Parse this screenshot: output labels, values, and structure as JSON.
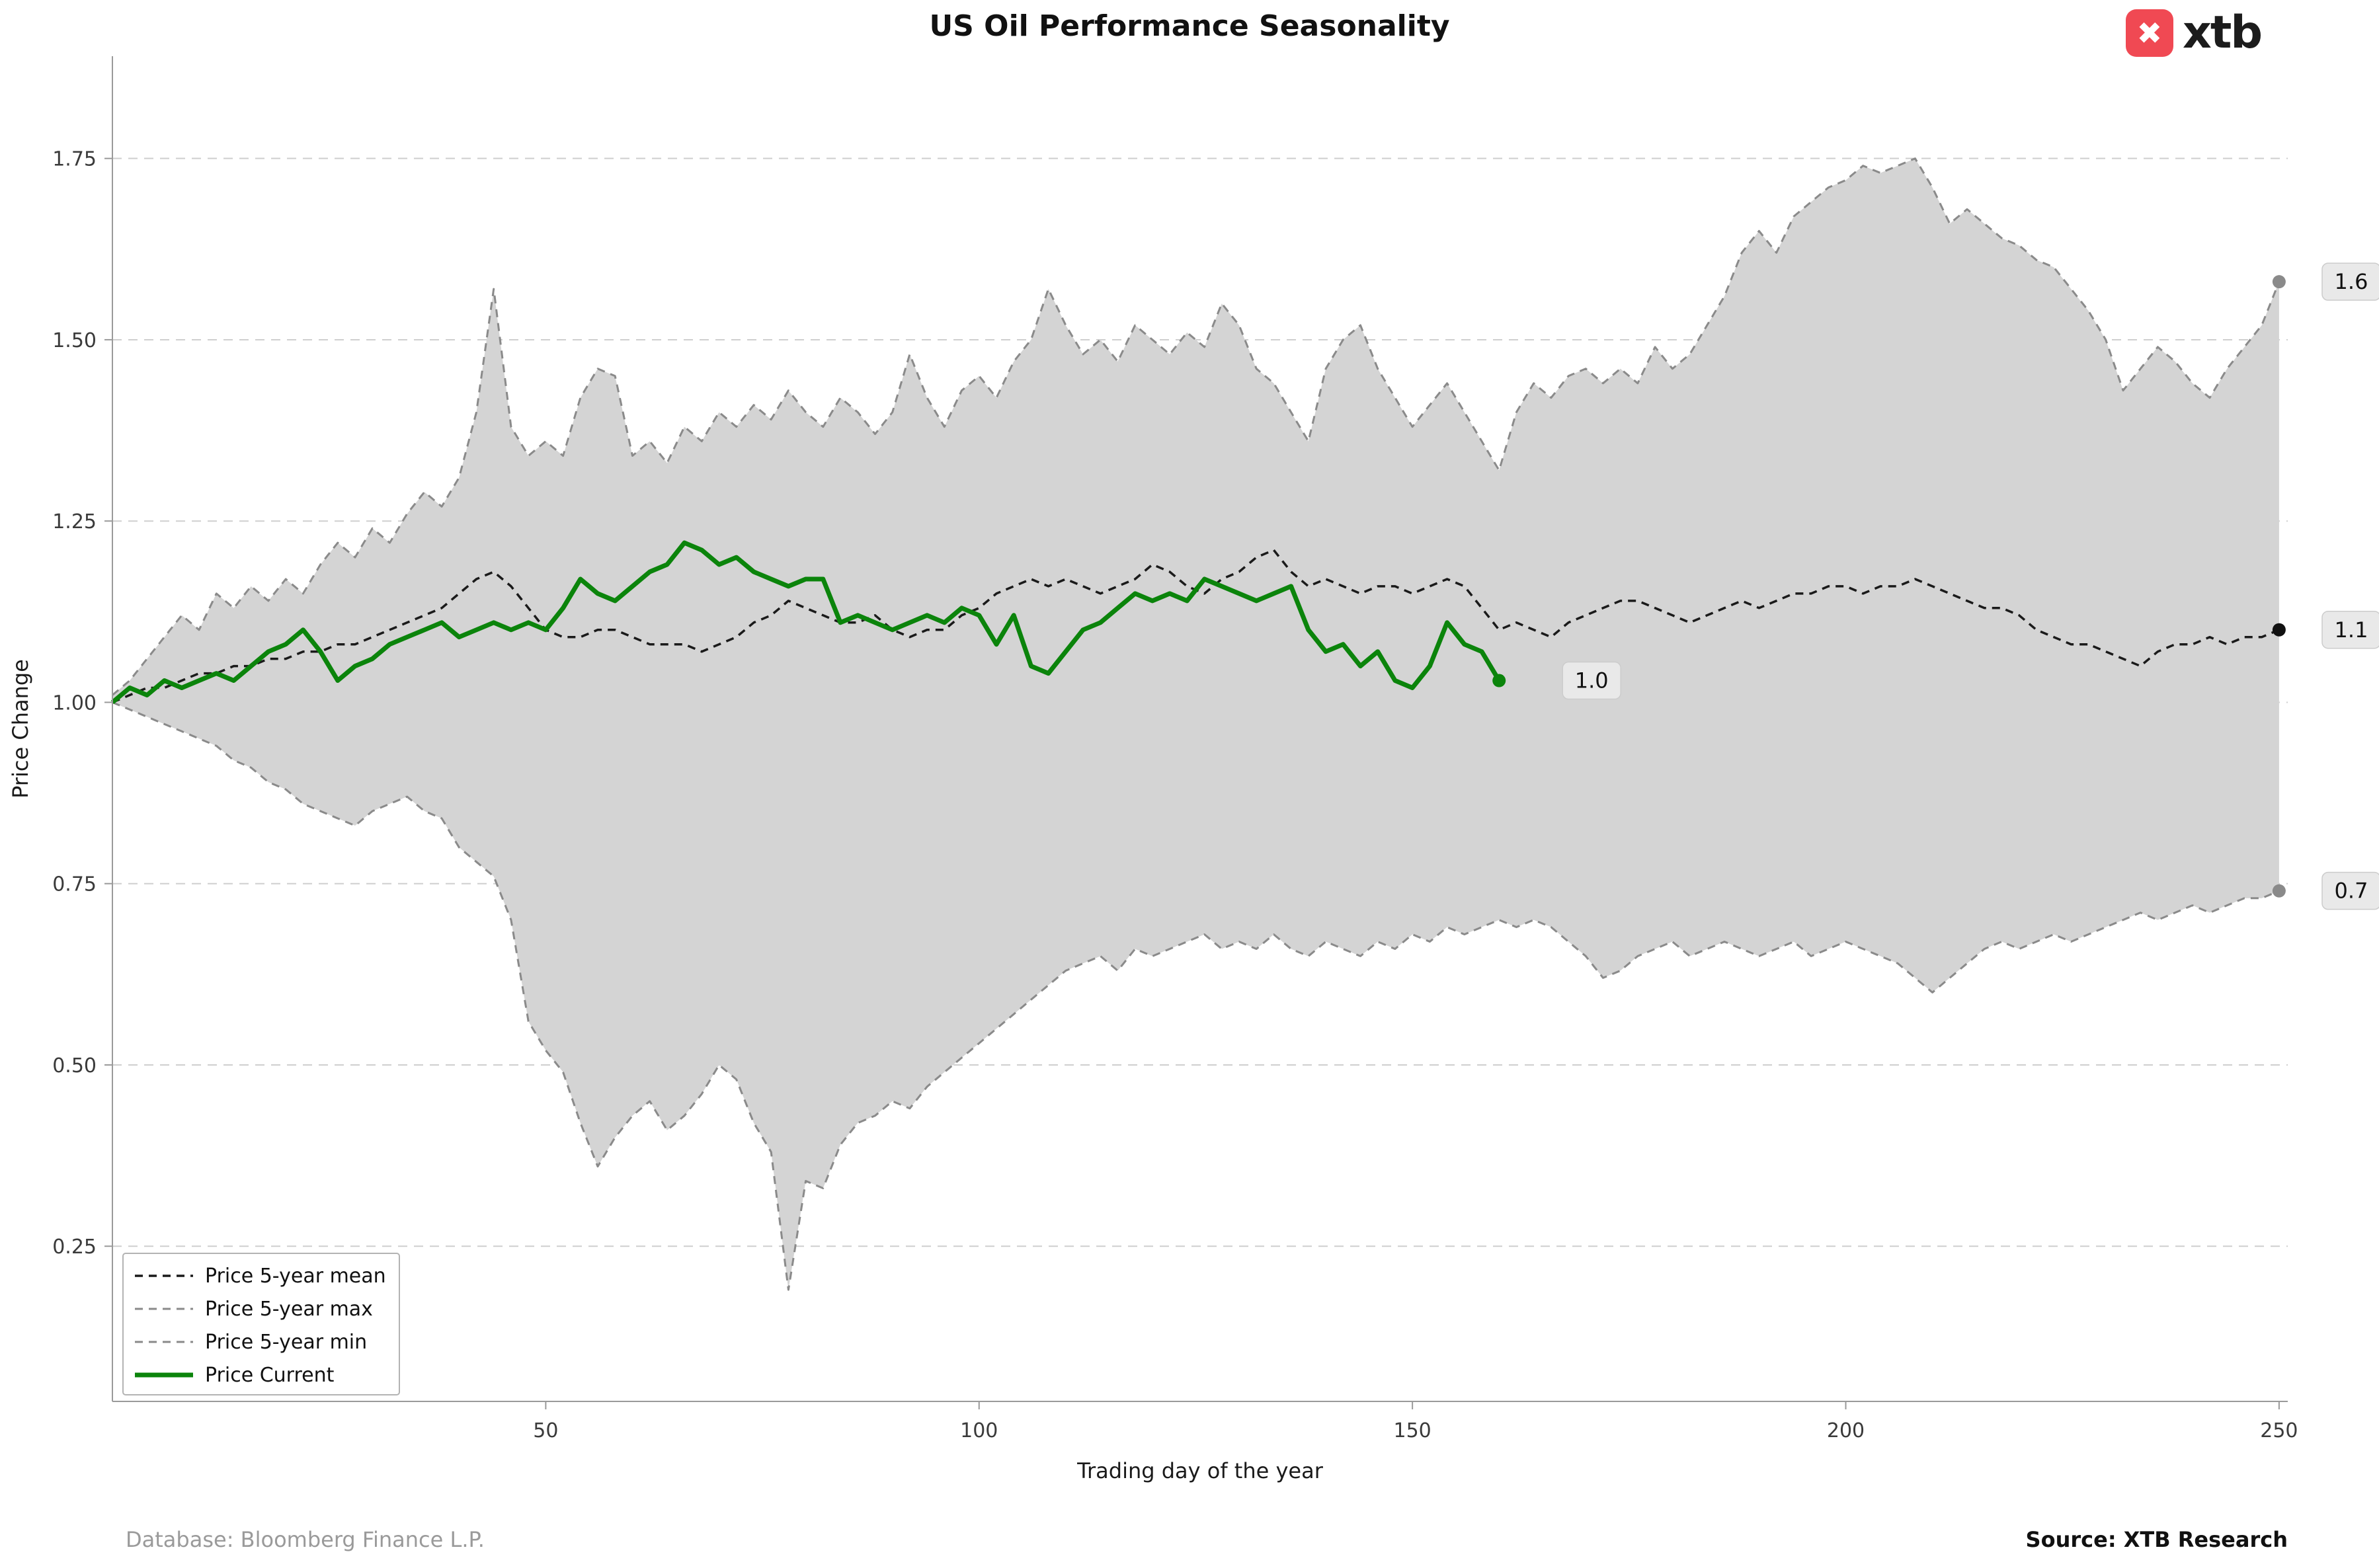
{
  "branding": {
    "logo_text": "xtb"
  },
  "footer": {
    "database": "Database: Bloomberg Finance L.P.",
    "source": "Source: XTB Research"
  },
  "chart_data": {
    "type": "line",
    "title": "US Oil Performance Seasonality",
    "xlabel": "Trading day of the year",
    "ylabel": "Price Change",
    "xlim": [
      0,
      251
    ],
    "ylim": [
      0.036,
      1.891
    ],
    "xticks": [
      50,
      100,
      150,
      200,
      250
    ],
    "xtick_labels": [
      "50",
      "100",
      "150",
      "200",
      "250"
    ],
    "yticks": [
      0.25,
      0.5,
      0.75,
      1.0,
      1.25,
      1.5,
      1.75
    ],
    "ytick_labels": [
      "0.25",
      "0.50",
      "0.75",
      "1.00",
      "1.25",
      "1.50",
      "1.75"
    ],
    "grid": "horizontal-dashed",
    "legend_position": "lower-left",
    "colors": {
      "grid": "#cfcfcf",
      "band_fill": "#d4d4d4",
      "spine": "#9a9a9a"
    },
    "series": [
      {
        "key": "mean",
        "name": "Price 5-year mean",
        "color": "#1a1a1a",
        "width": 3.5,
        "dash": "12 9",
        "x_start": 0,
        "x_step": 2,
        "values": [
          1.0,
          1.01,
          1.02,
          1.02,
          1.03,
          1.04,
          1.04,
          1.05,
          1.05,
          1.06,
          1.06,
          1.07,
          1.07,
          1.08,
          1.08,
          1.09,
          1.1,
          1.11,
          1.12,
          1.13,
          1.15,
          1.17,
          1.18,
          1.16,
          1.13,
          1.1,
          1.09,
          1.09,
          1.1,
          1.1,
          1.09,
          1.08,
          1.08,
          1.08,
          1.07,
          1.08,
          1.09,
          1.11,
          1.12,
          1.14,
          1.13,
          1.12,
          1.11,
          1.11,
          1.12,
          1.1,
          1.09,
          1.1,
          1.1,
          1.12,
          1.13,
          1.15,
          1.16,
          1.17,
          1.16,
          1.17,
          1.16,
          1.15,
          1.16,
          1.17,
          1.19,
          1.18,
          1.16,
          1.15,
          1.17,
          1.18,
          1.2,
          1.21,
          1.18,
          1.16,
          1.17,
          1.16,
          1.15,
          1.16,
          1.16,
          1.15,
          1.16,
          1.17,
          1.16,
          1.13,
          1.1,
          1.11,
          1.1,
          1.09,
          1.11,
          1.12,
          1.13,
          1.14,
          1.14,
          1.13,
          1.12,
          1.11,
          1.12,
          1.13,
          1.14,
          1.13,
          1.14,
          1.15,
          1.15,
          1.16,
          1.16,
          1.15,
          1.16,
          1.16,
          1.17,
          1.16,
          1.15,
          1.14,
          1.13,
          1.13,
          1.12,
          1.1,
          1.09,
          1.08,
          1.08,
          1.07,
          1.06,
          1.05,
          1.07,
          1.08,
          1.08,
          1.09,
          1.08,
          1.09,
          1.09,
          1.1
        ]
      },
      {
        "key": "max",
        "name": "Price 5-year max",
        "color": "#8a8a8a",
        "width": 3,
        "dash": "12 9",
        "x_start": 0,
        "x_step": 2,
        "values": [
          1.01,
          1.03,
          1.06,
          1.09,
          1.12,
          1.1,
          1.15,
          1.13,
          1.16,
          1.14,
          1.17,
          1.15,
          1.19,
          1.22,
          1.2,
          1.24,
          1.22,
          1.26,
          1.29,
          1.27,
          1.31,
          1.4,
          1.57,
          1.38,
          1.34,
          1.36,
          1.34,
          1.42,
          1.46,
          1.45,
          1.34,
          1.36,
          1.33,
          1.38,
          1.36,
          1.4,
          1.38,
          1.41,
          1.39,
          1.43,
          1.4,
          1.38,
          1.42,
          1.4,
          1.37,
          1.4,
          1.48,
          1.42,
          1.38,
          1.43,
          1.45,
          1.42,
          1.47,
          1.5,
          1.57,
          1.52,
          1.48,
          1.5,
          1.47,
          1.52,
          1.5,
          1.48,
          1.51,
          1.49,
          1.55,
          1.52,
          1.46,
          1.44,
          1.4,
          1.36,
          1.46,
          1.5,
          1.52,
          1.46,
          1.42,
          1.38,
          1.41,
          1.44,
          1.4,
          1.36,
          1.32,
          1.4,
          1.44,
          1.42,
          1.45,
          1.46,
          1.44,
          1.46,
          1.44,
          1.49,
          1.46,
          1.48,
          1.52,
          1.56,
          1.62,
          1.65,
          1.62,
          1.67,
          1.69,
          1.71,
          1.72,
          1.74,
          1.73,
          1.74,
          1.75,
          1.71,
          1.66,
          1.68,
          1.66,
          1.64,
          1.63,
          1.61,
          1.6,
          1.57,
          1.54,
          1.5,
          1.43,
          1.46,
          1.49,
          1.47,
          1.44,
          1.42,
          1.46,
          1.49,
          1.52,
          1.58
        ]
      },
      {
        "key": "min",
        "name": "Price 5-year min",
        "color": "#8a8a8a",
        "width": 3,
        "dash": "12 9",
        "x_start": 0,
        "x_step": 2,
        "values": [
          1.0,
          0.99,
          0.98,
          0.97,
          0.96,
          0.95,
          0.94,
          0.92,
          0.91,
          0.89,
          0.88,
          0.86,
          0.85,
          0.84,
          0.83,
          0.85,
          0.86,
          0.87,
          0.85,
          0.84,
          0.8,
          0.78,
          0.76,
          0.7,
          0.56,
          0.52,
          0.49,
          0.42,
          0.36,
          0.4,
          0.43,
          0.45,
          0.41,
          0.43,
          0.46,
          0.5,
          0.48,
          0.42,
          0.38,
          0.19,
          0.34,
          0.33,
          0.39,
          0.42,
          0.43,
          0.45,
          0.44,
          0.47,
          0.49,
          0.51,
          0.53,
          0.55,
          0.57,
          0.59,
          0.61,
          0.63,
          0.64,
          0.65,
          0.63,
          0.66,
          0.65,
          0.66,
          0.67,
          0.68,
          0.66,
          0.67,
          0.66,
          0.68,
          0.66,
          0.65,
          0.67,
          0.66,
          0.65,
          0.67,
          0.66,
          0.68,
          0.67,
          0.69,
          0.68,
          0.69,
          0.7,
          0.69,
          0.7,
          0.69,
          0.67,
          0.65,
          0.62,
          0.63,
          0.65,
          0.66,
          0.67,
          0.65,
          0.66,
          0.67,
          0.66,
          0.65,
          0.66,
          0.67,
          0.65,
          0.66,
          0.67,
          0.66,
          0.65,
          0.64,
          0.62,
          0.6,
          0.62,
          0.64,
          0.66,
          0.67,
          0.66,
          0.67,
          0.68,
          0.67,
          0.68,
          0.69,
          0.7,
          0.71,
          0.7,
          0.71,
          0.72,
          0.71,
          0.72,
          0.73,
          0.73,
          0.74
        ]
      },
      {
        "key": "current",
        "name": "Price Current",
        "color": "#0b840b",
        "width": 7,
        "dash": "",
        "x_start": 0,
        "x_step": 2,
        "values": [
          1.0,
          1.02,
          1.01,
          1.03,
          1.02,
          1.03,
          1.04,
          1.03,
          1.05,
          1.07,
          1.08,
          1.1,
          1.07,
          1.03,
          1.05,
          1.06,
          1.08,
          1.09,
          1.1,
          1.11,
          1.09,
          1.1,
          1.11,
          1.1,
          1.11,
          1.1,
          1.13,
          1.17,
          1.15,
          1.14,
          1.16,
          1.18,
          1.19,
          1.22,
          1.21,
          1.19,
          1.2,
          1.18,
          1.17,
          1.16,
          1.17,
          1.17,
          1.11,
          1.12,
          1.11,
          1.1,
          1.11,
          1.12,
          1.11,
          1.13,
          1.12,
          1.08,
          1.12,
          1.05,
          1.04,
          1.07,
          1.1,
          1.11,
          1.13,
          1.15,
          1.14,
          1.15,
          1.14,
          1.17,
          1.16,
          1.15,
          1.14,
          1.15,
          1.16,
          1.1,
          1.07,
          1.08,
          1.05,
          1.07,
          1.03,
          1.02,
          1.05,
          1.11,
          1.08,
          1.07,
          1.03
        ]
      }
    ],
    "end_labels": [
      {
        "text": "1.6",
        "day": 250,
        "value": 1.58,
        "dot_color": "#8a8a8a",
        "placement": "margin"
      },
      {
        "text": "1.1",
        "day": 250,
        "value": 1.1,
        "dot_color": "#111111",
        "placement": "margin"
      },
      {
        "text": "0.7",
        "day": 250,
        "value": 0.74,
        "dot_color": "#8a8a8a",
        "placement": "margin"
      },
      {
        "text": "1.0",
        "day": 160,
        "value": 1.03,
        "dot_color": "#0b840b",
        "placement": "inline"
      }
    ]
  }
}
